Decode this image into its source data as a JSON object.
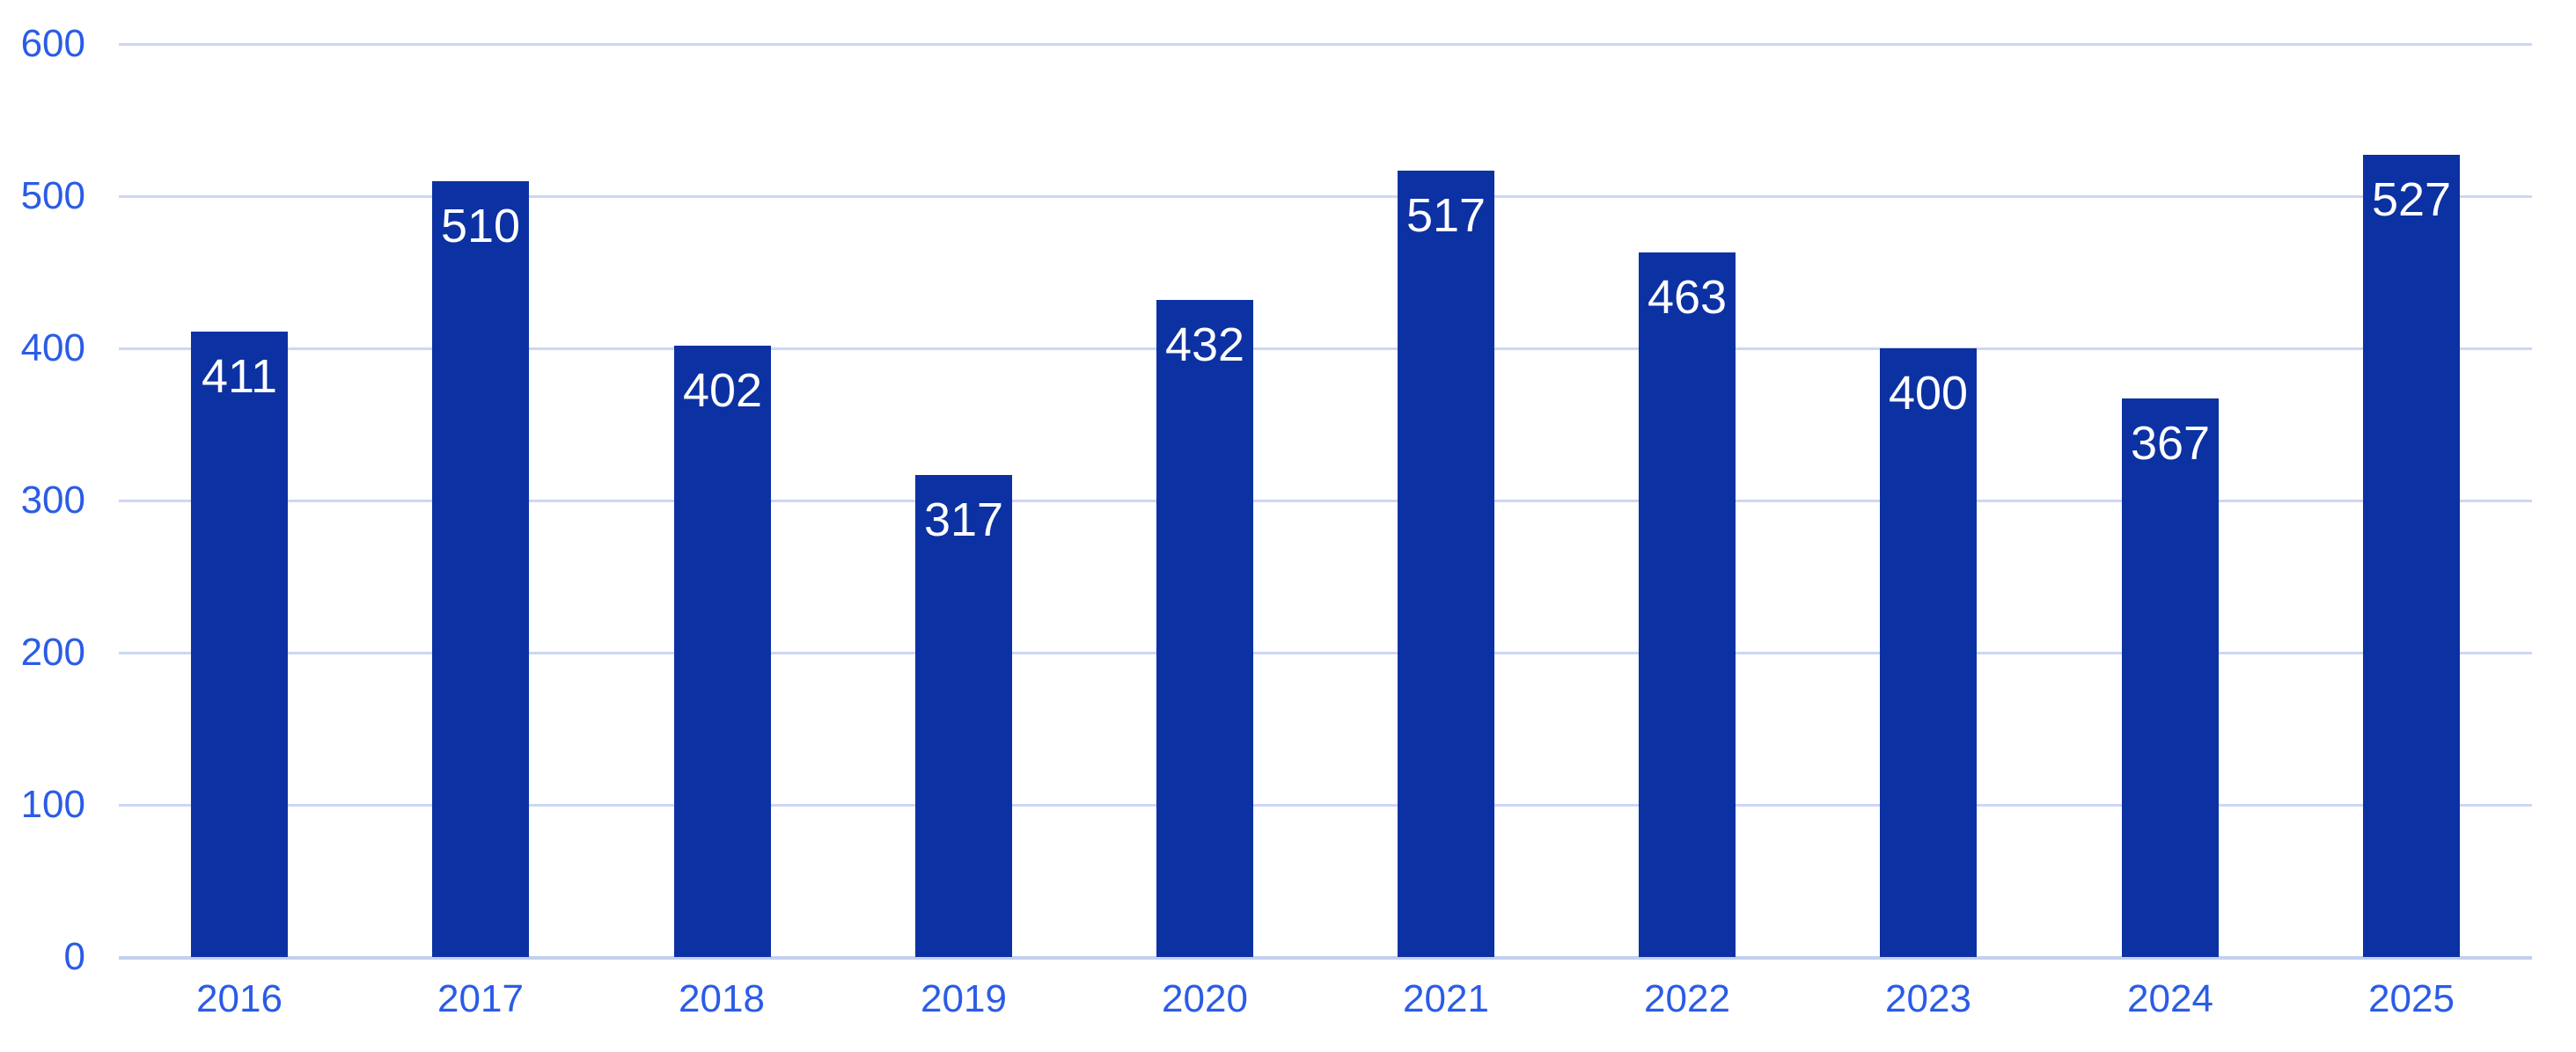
{
  "chart_data": {
    "type": "bar",
    "title": "",
    "xlabel": "",
    "ylabel": "",
    "categories": [
      "2016",
      "2017",
      "2018",
      "2019",
      "2020",
      "2021",
      "2022",
      "2023",
      "2024",
      "2025"
    ],
    "values": [
      411,
      510,
      402,
      317,
      432,
      517,
      463,
      400,
      367,
      527
    ],
    "data_labels": [
      "411",
      "510",
      "402",
      "317",
      "432",
      "517",
      "463",
      "400",
      "367",
      "527"
    ],
    "data_label_position": "inside-top",
    "ylim": [
      0,
      600
    ],
    "yticks": [
      0,
      100,
      200,
      300,
      400,
      500,
      600
    ],
    "grid": "horizontal",
    "legend": "none",
    "colors": {
      "bar": "#0C31A2",
      "axis_label": "#2B5CE6",
      "gridline": "#CCD7F3",
      "baseline": "#C3D0EE",
      "data_label_text": "#FFFFFF",
      "background": "#FFFFFF"
    }
  }
}
